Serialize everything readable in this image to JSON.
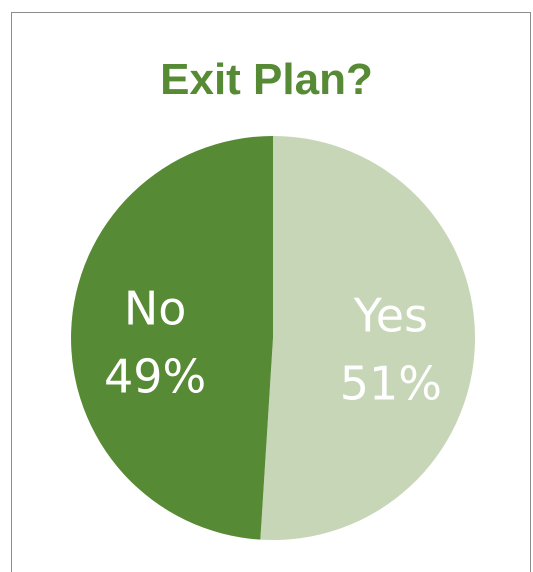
{
  "chart_data": {
    "type": "pie",
    "title": "Exit Plan?",
    "slices": [
      {
        "label": "Yes",
        "value": 51,
        "value_label": "51%",
        "color": "#c7d6b7"
      },
      {
        "label": "No",
        "value": 49,
        "value_label": "49%",
        "color": "#578a34"
      }
    ],
    "title_color": "#578a34",
    "label_color": "#ffffff",
    "start_angle_deg": 0,
    "direction": "clockwise"
  }
}
